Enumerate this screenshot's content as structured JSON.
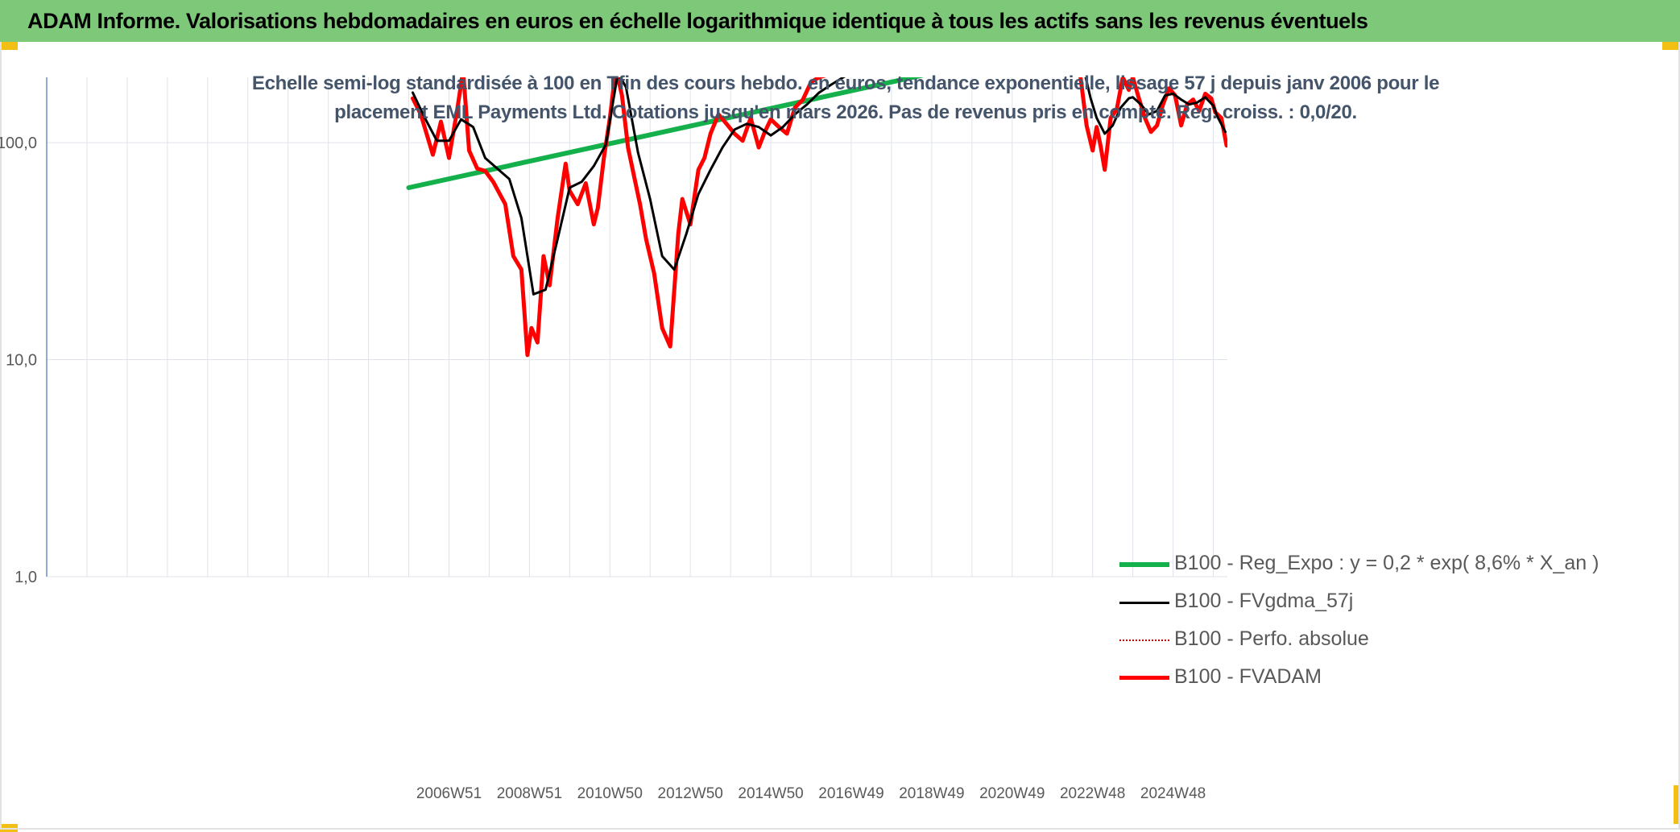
{
  "header": {
    "title": "ADAM Informe. Valorisations hebdomadaires en euros en échelle logarithmique identique à tous les actifs sans les revenus éventuels"
  },
  "colors": {
    "header_bg": "#7ec87a",
    "accent_corner": "#f2c014",
    "regression": "#13b04b",
    "smoothed": "#000000",
    "perf_absolue": "#c00000",
    "fvadam": "#ff0000"
  },
  "chart_data": {
    "type": "line",
    "subtitle_line1": "Echelle semi-log standardisée à 100 en Tfin des cours hebdo. en euros, tendance exponentielle, lissage 57 j depuis janv 2006 pour le",
    "subtitle_line2": "placement EML Payments Ltd. Cotations jusqu'en mars 2026. Pas de revenus pris en compte. Reg. croiss. : 0,0/20.",
    "y_scale": "log",
    "ylim": [
      1,
      200
    ],
    "y_ticks": [
      {
        "value": 1,
        "label": "1,0"
      },
      {
        "value": 10,
        "label": "10,0"
      },
      {
        "value": 100,
        "label": "100,0"
      }
    ],
    "xlim": [
      1997.0,
      2026.35
    ],
    "x_ticks": [
      {
        "value": 2007.0,
        "label": "2006W51"
      },
      {
        "value": 2009.0,
        "label": "2008W51"
      },
      {
        "value": 2011.0,
        "label": "2010W50"
      },
      {
        "value": 2013.0,
        "label": "2012W50"
      },
      {
        "value": 2015.0,
        "label": "2014W50"
      },
      {
        "value": 2017.0,
        "label": "2016W49"
      },
      {
        "value": 2019.0,
        "label": "2018W49"
      },
      {
        "value": 2021.0,
        "label": "2020W49"
      },
      {
        "value": 2023.0,
        "label": "2022W48"
      },
      {
        "value": 2025.0,
        "label": "2024W48"
      }
    ],
    "grid_x": [
      1998,
      1999,
      2000,
      2001,
      2002,
      2003,
      2004,
      2005,
      2006,
      2007,
      2008,
      2009,
      2010,
      2011,
      2012,
      2013,
      2014,
      2015,
      2016,
      2017,
      2018,
      2019,
      2020,
      2021,
      2022,
      2023,
      2024,
      2025,
      2026
    ],
    "grid_y": [
      1,
      10,
      100
    ],
    "legend_position": "lower-right",
    "series": [
      {
        "name": "B100 - Reg_Expo : y = 0,2 * exp( 8,6% *  X_an )",
        "style": "regression",
        "x": [
          2006.0,
          2018.8
        ],
        "y": [
          62,
          205
        ]
      },
      {
        "name": "B100 - FVgdma_57j",
        "style": "smoothed",
        "x": [
          2006.1,
          2006.4,
          2006.7,
          2007.0,
          2007.3,
          2007.6,
          2007.9,
          2008.2,
          2008.5,
          2008.8,
          2009.1,
          2009.4,
          2009.7,
          2010.0,
          2010.3,
          2010.6,
          2010.9,
          2011.2,
          2011.4,
          2011.7,
          2012.0,
          2012.3,
          2012.6,
          2012.9,
          2013.2,
          2013.5,
          2013.8,
          2014.1,
          2014.4,
          2014.7,
          2015.0,
          2015.3,
          2015.6,
          2015.9,
          2016.2,
          2016.5,
          2016.8,
          2017.0
        ],
        "y": [
          170,
          130,
          102,
          102,
          128,
          118,
          85,
          76,
          68,
          45,
          20,
          21,
          36,
          62,
          66,
          78,
          98,
          210,
          180,
          90,
          55,
          30,
          26,
          38,
          58,
          75,
          95,
          115,
          122,
          118,
          108,
          118,
          135,
          150,
          170,
          185,
          200,
          210
        ]
      },
      {
        "name": "B100 - FVgdma_57j",
        "style": "smoothed",
        "x": [
          2022.8,
          2022.95,
          2023.1,
          2023.3,
          2023.5,
          2023.7,
          2023.9,
          2024.0,
          2024.2,
          2024.4,
          2024.6,
          2024.8,
          2025.0,
          2025.2,
          2025.4,
          2025.6,
          2025.8,
          2026.0,
          2026.1,
          2026.3
        ],
        "y": [
          210,
          160,
          130,
          110,
          120,
          145,
          160,
          162,
          150,
          135,
          140,
          165,
          168,
          158,
          150,
          153,
          162,
          148,
          132,
          112
        ]
      },
      {
        "name": "B100 - Perfo. absolue",
        "style": "perf_absolue",
        "x": [],
        "y": []
      },
      {
        "name": "B100 - FVADAM",
        "style": "fvadam",
        "x": [
          2006.1,
          2006.3,
          2006.6,
          2006.8,
          2007.0,
          2007.2,
          2007.35,
          2007.5,
          2007.7,
          2007.9,
          2008.1,
          2008.4,
          2008.6,
          2008.8,
          2008.95,
          2009.05,
          2009.2,
          2009.35,
          2009.5,
          2009.7,
          2009.9,
          2010.0,
          2010.2,
          2010.4,
          2010.6,
          2010.7,
          2010.85,
          2011.0,
          2011.15,
          2011.3,
          2011.45,
          2011.6,
          2011.75,
          2011.9,
          2012.1,
          2012.3,
          2012.5,
          2012.7,
          2012.8,
          2012.9,
          2013.0,
          2013.2,
          2013.35,
          2013.5,
          2013.7,
          2013.9,
          2014.1,
          2014.3,
          2014.5,
          2014.7,
          2014.85,
          2015.0,
          2015.2,
          2015.4,
          2015.6,
          2015.8,
          2016.0,
          2016.2,
          2016.4,
          2016.6
        ],
        "y": [
          160,
          135,
          88,
          125,
          85,
          140,
          215,
          92,
          76,
          74,
          66,
          52,
          30,
          26,
          10.5,
          14,
          12,
          30,
          22,
          45,
          80,
          60,
          52,
          65,
          42,
          50,
          85,
          130,
          220,
          165,
          95,
          70,
          52,
          36,
          25,
          14,
          11.5,
          38,
          55,
          48,
          42,
          75,
          85,
          110,
          135,
          122,
          110,
          102,
          130,
          95,
          112,
          128,
          118,
          110,
          145,
          158,
          190,
          200,
          205,
          210
        ]
      },
      {
        "name": "B100 - FVADAM",
        "style": "fvadam",
        "x": [
          2022.7,
          2022.85,
          2023.0,
          2023.1,
          2023.2,
          2023.3,
          2023.45,
          2023.6,
          2023.75,
          2023.9,
          2024.0,
          2024.15,
          2024.3,
          2024.45,
          2024.6,
          2024.75,
          2024.9,
          2025.05,
          2025.2,
          2025.35,
          2025.5,
          2025.65,
          2025.8,
          2025.95,
          2026.05,
          2026.2,
          2026.33
        ],
        "y": [
          200,
          120,
          92,
          118,
          96,
          75,
          130,
          142,
          200,
          175,
          200,
          160,
          130,
          112,
          120,
          150,
          178,
          165,
          120,
          150,
          158,
          140,
          168,
          160,
          138,
          130,
          97
        ]
      }
    ]
  },
  "legend": [
    {
      "label": "B100 - Reg_Expo : y = 0,2 * exp( 8,6% *  X_an )",
      "color": "#13b04b",
      "style": "thick"
    },
    {
      "label": "B100 - FVgdma_57j",
      "color": "#000000",
      "style": "medium"
    },
    {
      "label": "B100 - Perfo. absolue",
      "color": "#c00000",
      "style": "dotted"
    },
    {
      "label": "B100 - FVADAM",
      "color": "#ff0000",
      "style": "thick"
    }
  ]
}
